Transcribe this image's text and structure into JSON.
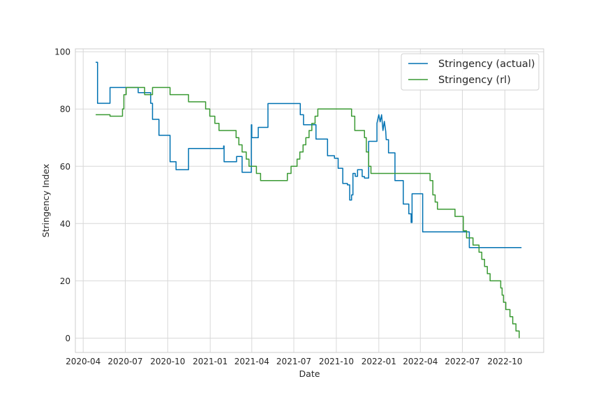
{
  "chart_data": {
    "type": "line",
    "title": "",
    "xlabel": "Date",
    "ylabel": "Stringency Index",
    "xlim": [
      "2020-03-15",
      "2022-12-24"
    ],
    "ylim": [
      -5,
      101
    ],
    "grid": true,
    "legend_position": "top-right",
    "x_ticks": [
      {
        "date": "2020-04-01",
        "label": "2020-04"
      },
      {
        "date": "2020-07-01",
        "label": "2020-07"
      },
      {
        "date": "2020-10-01",
        "label": "2020-10"
      },
      {
        "date": "2021-01-01",
        "label": "2021-01"
      },
      {
        "date": "2021-04-01",
        "label": "2021-04"
      },
      {
        "date": "2021-07-01",
        "label": "2021-07"
      },
      {
        "date": "2021-10-01",
        "label": "2021-10"
      },
      {
        "date": "2022-01-01",
        "label": "2022-01"
      },
      {
        "date": "2022-04-01",
        "label": "2022-04"
      },
      {
        "date": "2022-07-01",
        "label": "2022-07"
      },
      {
        "date": "2022-10-01",
        "label": "2022-10"
      }
    ],
    "y_ticks": [
      {
        "value": 0,
        "label": "0"
      },
      {
        "value": 20,
        "label": "20"
      },
      {
        "value": 40,
        "label": "40"
      },
      {
        "value": 60,
        "label": "60"
      },
      {
        "value": 80,
        "label": "80"
      },
      {
        "value": 100,
        "label": "100"
      }
    ],
    "series": [
      {
        "name": "Stringency (actual)",
        "color": "#0072b2",
        "points": [
          [
            "2020-04-28",
            96.3
          ],
          [
            "2020-05-02",
            96.3
          ],
          [
            "2020-05-02",
            82
          ],
          [
            "2020-05-29",
            82
          ],
          [
            "2020-05-29",
            87.5
          ],
          [
            "2020-07-29",
            87.5
          ],
          [
            "2020-07-29",
            85.7
          ],
          [
            "2020-08-25",
            85.7
          ],
          [
            "2020-08-25",
            82
          ],
          [
            "2020-08-29",
            82
          ],
          [
            "2020-08-29",
            76.4
          ],
          [
            "2020-09-12",
            76.4
          ],
          [
            "2020-09-12",
            70.8
          ],
          [
            "2020-10-06",
            70.8
          ],
          [
            "2020-10-06",
            61.6
          ],
          [
            "2020-10-19",
            61.6
          ],
          [
            "2020-10-19",
            58.8
          ],
          [
            "2020-11-15",
            58.8
          ],
          [
            "2020-11-15",
            66.2
          ],
          [
            "2021-01-30",
            66.2
          ],
          [
            "2021-01-30",
            67.1
          ],
          [
            "2021-01-31",
            67.1
          ],
          [
            "2021-01-31",
            61.6
          ],
          [
            "2021-02-27",
            61.6
          ],
          [
            "2021-02-27",
            63.4
          ],
          [
            "2021-03-11",
            63.4
          ],
          [
            "2021-03-11",
            57.9
          ],
          [
            "2021-03-31",
            57.9
          ],
          [
            "2021-03-31",
            74.5
          ],
          [
            "2021-04-01",
            74.5
          ],
          [
            "2021-04-01",
            70
          ],
          [
            "2021-04-15",
            70
          ],
          [
            "2021-04-15",
            73.6
          ],
          [
            "2021-05-06",
            73.6
          ],
          [
            "2021-05-06",
            81.9
          ],
          [
            "2021-07-15",
            81.9
          ],
          [
            "2021-07-15",
            78
          ],
          [
            "2021-07-22",
            78
          ],
          [
            "2021-07-22",
            74.5
          ],
          [
            "2021-08-18",
            74.5
          ],
          [
            "2021-08-18",
            69.5
          ],
          [
            "2021-09-12",
            69.5
          ],
          [
            "2021-09-12",
            63.7
          ],
          [
            "2021-09-27",
            63.7
          ],
          [
            "2021-09-27",
            62.8
          ],
          [
            "2021-10-05",
            62.8
          ],
          [
            "2021-10-05",
            59.3
          ],
          [
            "2021-10-15",
            59.3
          ],
          [
            "2021-10-15",
            54
          ],
          [
            "2021-10-25",
            54
          ],
          [
            "2021-10-25",
            53.5
          ],
          [
            "2021-10-30",
            53.5
          ],
          [
            "2021-10-30",
            48.2
          ],
          [
            "2021-11-03",
            48.2
          ],
          [
            "2021-11-03",
            50
          ],
          [
            "2021-11-06",
            50
          ],
          [
            "2021-11-06",
            57.5
          ],
          [
            "2021-11-11",
            57.5
          ],
          [
            "2021-11-11",
            56.5
          ],
          [
            "2021-11-16",
            56.5
          ],
          [
            "2021-11-16",
            58.8
          ],
          [
            "2021-11-26",
            58.8
          ],
          [
            "2021-11-26",
            56.4
          ],
          [
            "2021-12-01",
            56.4
          ],
          [
            "2021-12-01",
            55.9
          ],
          [
            "2021-12-10",
            55.9
          ],
          [
            "2021-12-10",
            68.7
          ],
          [
            "2021-12-28",
            68.7
          ],
          [
            "2021-12-28",
            75
          ],
          [
            "2022-01-01",
            78
          ],
          [
            "2022-01-04",
            75.5
          ],
          [
            "2022-01-07",
            78
          ],
          [
            "2022-01-10",
            72.5
          ],
          [
            "2022-01-13",
            75.7
          ],
          [
            "2022-01-16",
            72.2
          ],
          [
            "2022-01-17",
            69.3
          ],
          [
            "2022-01-22",
            69.3
          ],
          [
            "2022-01-22",
            64.7
          ],
          [
            "2022-02-05",
            64.7
          ],
          [
            "2022-02-05",
            55
          ],
          [
            "2022-02-23",
            55
          ],
          [
            "2022-02-23",
            46.8
          ],
          [
            "2022-03-07",
            46.8
          ],
          [
            "2022-03-07",
            43.4
          ],
          [
            "2022-03-12",
            43.4
          ],
          [
            "2022-03-12",
            40.4
          ],
          [
            "2022-03-14",
            40.4
          ],
          [
            "2022-03-14",
            50.4
          ],
          [
            "2022-04-06",
            50.4
          ],
          [
            "2022-04-06",
            37.1
          ],
          [
            "2022-07-16",
            37.1
          ],
          [
            "2022-07-16",
            31.6
          ],
          [
            "2022-11-06",
            31.6
          ]
        ]
      },
      {
        "name": "Stringency (rl)",
        "color": "#3a9a33",
        "points": [
          [
            "2020-04-28",
            78
          ],
          [
            "2020-05-29",
            78
          ],
          [
            "2020-05-29",
            77.5
          ],
          [
            "2020-06-25",
            77.5
          ],
          [
            "2020-06-25",
            80
          ],
          [
            "2020-06-28",
            80
          ],
          [
            "2020-06-28",
            85
          ],
          [
            "2020-07-03",
            85
          ],
          [
            "2020-07-03",
            87.5
          ],
          [
            "2020-08-12",
            87.5
          ],
          [
            "2020-08-12",
            85
          ],
          [
            "2020-08-29",
            85
          ],
          [
            "2020-08-29",
            87.5
          ],
          [
            "2020-10-06",
            87.5
          ],
          [
            "2020-10-06",
            85
          ],
          [
            "2020-11-15",
            85
          ],
          [
            "2020-11-15",
            82.5
          ],
          [
            "2020-12-22",
            82.5
          ],
          [
            "2020-12-22",
            80
          ],
          [
            "2020-12-31",
            80
          ],
          [
            "2020-12-31",
            77.5
          ],
          [
            "2021-01-11",
            77.5
          ],
          [
            "2021-01-11",
            75
          ],
          [
            "2021-01-20",
            75
          ],
          [
            "2021-01-20",
            72.5
          ],
          [
            "2021-02-26",
            72.5
          ],
          [
            "2021-02-26",
            70
          ],
          [
            "2021-03-04",
            70
          ],
          [
            "2021-03-04",
            67.5
          ],
          [
            "2021-03-11",
            67.5
          ],
          [
            "2021-03-11",
            65
          ],
          [
            "2021-03-20",
            65
          ],
          [
            "2021-03-20",
            62.5
          ],
          [
            "2021-03-26",
            62.5
          ],
          [
            "2021-03-26",
            60
          ],
          [
            "2021-04-11",
            60
          ],
          [
            "2021-04-11",
            57.5
          ],
          [
            "2021-04-20",
            57.5
          ],
          [
            "2021-04-20",
            55
          ],
          [
            "2021-06-17",
            55
          ],
          [
            "2021-06-17",
            57.5
          ],
          [
            "2021-06-25",
            57.5
          ],
          [
            "2021-06-25",
            60
          ],
          [
            "2021-07-08",
            60
          ],
          [
            "2021-07-08",
            62.5
          ],
          [
            "2021-07-14",
            62.5
          ],
          [
            "2021-07-14",
            65
          ],
          [
            "2021-07-21",
            65
          ],
          [
            "2021-07-21",
            67.5
          ],
          [
            "2021-07-27",
            67.5
          ],
          [
            "2021-07-27",
            70
          ],
          [
            "2021-08-03",
            70
          ],
          [
            "2021-08-03",
            72.5
          ],
          [
            "2021-08-09",
            72.5
          ],
          [
            "2021-08-09",
            75
          ],
          [
            "2021-08-16",
            75
          ],
          [
            "2021-08-16",
            77.5
          ],
          [
            "2021-08-22",
            77.5
          ],
          [
            "2021-08-22",
            80
          ],
          [
            "2021-11-03",
            80
          ],
          [
            "2021-11-03",
            77.5
          ],
          [
            "2021-11-10",
            77.5
          ],
          [
            "2021-11-10",
            72.5
          ],
          [
            "2021-12-01",
            72.5
          ],
          [
            "2021-12-01",
            70
          ],
          [
            "2021-12-05",
            70
          ],
          [
            "2021-12-05",
            65
          ],
          [
            "2021-12-10",
            65
          ],
          [
            "2021-12-10",
            60
          ],
          [
            "2021-12-15",
            60
          ],
          [
            "2021-12-15",
            57.5
          ],
          [
            "2022-04-22",
            57.5
          ],
          [
            "2022-04-22",
            55
          ],
          [
            "2022-04-28",
            55
          ],
          [
            "2022-04-28",
            50
          ],
          [
            "2022-05-03",
            50
          ],
          [
            "2022-05-03",
            47.5
          ],
          [
            "2022-05-08",
            47.5
          ],
          [
            "2022-05-08",
            45
          ],
          [
            "2022-06-15",
            45
          ],
          [
            "2022-06-15",
            42.5
          ],
          [
            "2022-07-03",
            42.5
          ],
          [
            "2022-07-03",
            37.5
          ],
          [
            "2022-07-10",
            37.5
          ],
          [
            "2022-07-10",
            35
          ],
          [
            "2022-07-24",
            35
          ],
          [
            "2022-07-24",
            32.5
          ],
          [
            "2022-08-06",
            32.5
          ],
          [
            "2022-08-06",
            30
          ],
          [
            "2022-08-12",
            30
          ],
          [
            "2022-08-12",
            27.5
          ],
          [
            "2022-08-18",
            27.5
          ],
          [
            "2022-08-18",
            25
          ],
          [
            "2022-08-24",
            25
          ],
          [
            "2022-08-24",
            22.5
          ],
          [
            "2022-08-30",
            22.5
          ],
          [
            "2022-08-30",
            20
          ],
          [
            "2022-09-22",
            20
          ],
          [
            "2022-09-22",
            17.5
          ],
          [
            "2022-09-25",
            17.5
          ],
          [
            "2022-09-25",
            15
          ],
          [
            "2022-09-28",
            15
          ],
          [
            "2022-09-28",
            12.5
          ],
          [
            "2022-10-03",
            12.5
          ],
          [
            "2022-10-03",
            10
          ],
          [
            "2022-10-12",
            10
          ],
          [
            "2022-10-12",
            7.5
          ],
          [
            "2022-10-18",
            7.5
          ],
          [
            "2022-10-18",
            5
          ],
          [
            "2022-10-25",
            5
          ],
          [
            "2022-10-25",
            2.5
          ],
          [
            "2022-11-01",
            2.5
          ],
          [
            "2022-11-01",
            0
          ]
        ]
      }
    ]
  }
}
